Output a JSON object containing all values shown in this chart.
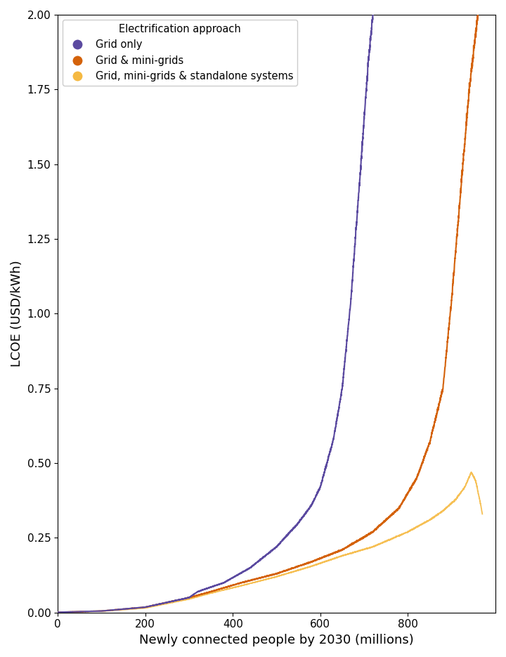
{
  "xlabel": "Newly connected people by 2030 (millions)",
  "ylabel": "LCOE (USD/kWh)",
  "xlim": [
    0,
    1000
  ],
  "ylim": [
    0,
    2.0
  ],
  "yticks": [
    0.0,
    0.25,
    0.5,
    0.75,
    1.0,
    1.25,
    1.5,
    1.75,
    2.0
  ],
  "xticks": [
    0,
    200,
    400,
    600,
    800
  ],
  "legend_title": "Electrification approach",
  "legend_labels": [
    "Grid only",
    "Grid & mini-grids",
    "Grid, mini-grids & standalone systems"
  ],
  "color_purple": "#5b4aa0",
  "color_dark_orange": "#d4620a",
  "color_light_orange": "#f5b942",
  "figsize": [
    7.2,
    9.35
  ],
  "dpi": 100
}
